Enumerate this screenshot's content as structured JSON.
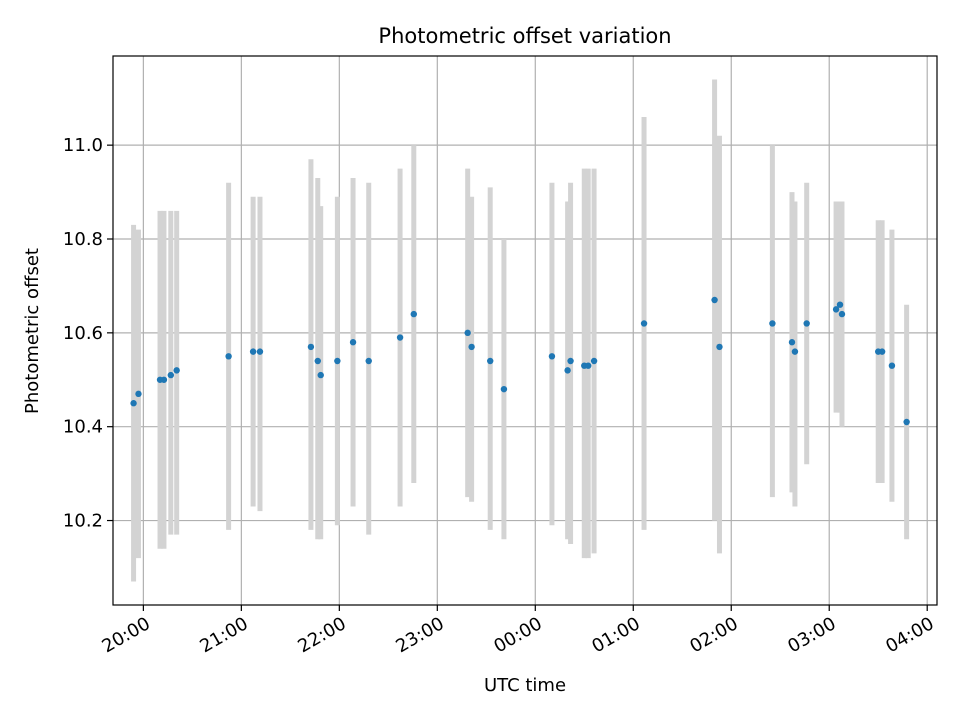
{
  "chart_data": {
    "type": "scatter",
    "title": "Photometric offset variation",
    "xlabel": "UTC time",
    "ylabel": "Photometric offset",
    "grid": true,
    "xlim": [
      -0.31,
      8.1
    ],
    "ylim": [
      10.02,
      11.19
    ],
    "x_ticks": [
      {
        "value": 0,
        "label": "20:00"
      },
      {
        "value": 1,
        "label": "21:00"
      },
      {
        "value": 2,
        "label": "22:00"
      },
      {
        "value": 3,
        "label": "23:00"
      },
      {
        "value": 4,
        "label": "00:00"
      },
      {
        "value": 5,
        "label": "01:00"
      },
      {
        "value": 6,
        "label": "02:00"
      },
      {
        "value": 7,
        "label": "03:00"
      },
      {
        "value": 8,
        "label": "04:00"
      }
    ],
    "y_ticks": [
      {
        "value": 10.2,
        "label": "10.2"
      },
      {
        "value": 10.4,
        "label": "10.4"
      },
      {
        "value": 10.6,
        "label": "10.6"
      },
      {
        "value": 10.8,
        "label": "10.8"
      },
      {
        "value": 11.0,
        "label": "11.0"
      }
    ],
    "series": [
      {
        "name": "Photometric offset",
        "marker_color": "#1f77b4",
        "errorbar_color": "#d3d3d3",
        "points": [
          {
            "x": -0.1,
            "y": 10.45,
            "ylow": 10.07,
            "yhigh": 10.83
          },
          {
            "x": -0.05,
            "y": 10.47,
            "ylow": 10.12,
            "yhigh": 10.82
          },
          {
            "x": 0.17,
            "y": 10.5,
            "ylow": 10.14,
            "yhigh": 10.86
          },
          {
            "x": 0.21,
            "y": 10.5,
            "ylow": 10.14,
            "yhigh": 10.86
          },
          {
            "x": 0.28,
            "y": 10.51,
            "ylow": 10.17,
            "yhigh": 10.86
          },
          {
            "x": 0.34,
            "y": 10.52,
            "ylow": 10.17,
            "yhigh": 10.86
          },
          {
            "x": 0.87,
            "y": 10.55,
            "ylow": 10.18,
            "yhigh": 10.92
          },
          {
            "x": 1.12,
            "y": 10.56,
            "ylow": 10.23,
            "yhigh": 10.89
          },
          {
            "x": 1.19,
            "y": 10.56,
            "ylow": 10.22,
            "yhigh": 10.89
          },
          {
            "x": 1.71,
            "y": 10.57,
            "ylow": 10.18,
            "yhigh": 10.97
          },
          {
            "x": 1.78,
            "y": 10.54,
            "ylow": 10.16,
            "yhigh": 10.93
          },
          {
            "x": 1.81,
            "y": 10.51,
            "ylow": 10.16,
            "yhigh": 10.87
          },
          {
            "x": 1.98,
            "y": 10.54,
            "ylow": 10.19,
            "yhigh": 10.89
          },
          {
            "x": 2.14,
            "y": 10.58,
            "ylow": 10.23,
            "yhigh": 10.93
          },
          {
            "x": 2.3,
            "y": 10.54,
            "ylow": 10.17,
            "yhigh": 10.92
          },
          {
            "x": 2.62,
            "y": 10.59,
            "ylow": 10.23,
            "yhigh": 10.95
          },
          {
            "x": 2.76,
            "y": 10.64,
            "ylow": 10.28,
            "yhigh": 11.0
          },
          {
            "x": 3.31,
            "y": 10.6,
            "ylow": 10.25,
            "yhigh": 10.95
          },
          {
            "x": 3.35,
            "y": 10.57,
            "ylow": 10.24,
            "yhigh": 10.89
          },
          {
            "x": 3.54,
            "y": 10.54,
            "ylow": 10.18,
            "yhigh": 10.91
          },
          {
            "x": 3.68,
            "y": 10.48,
            "ylow": 10.16,
            "yhigh": 10.8
          },
          {
            "x": 4.17,
            "y": 10.55,
            "ylow": 10.19,
            "yhigh": 10.92
          },
          {
            "x": 4.33,
            "y": 10.52,
            "ylow": 10.16,
            "yhigh": 10.88
          },
          {
            "x": 4.36,
            "y": 10.54,
            "ylow": 10.15,
            "yhigh": 10.92
          },
          {
            "x": 4.5,
            "y": 10.53,
            "ylow": 10.12,
            "yhigh": 10.95
          },
          {
            "x": 4.54,
            "y": 10.53,
            "ylow": 10.12,
            "yhigh": 10.95
          },
          {
            "x": 4.6,
            "y": 10.54,
            "ylow": 10.13,
            "yhigh": 10.95
          },
          {
            "x": 5.11,
            "y": 10.62,
            "ylow": 10.18,
            "yhigh": 11.06
          },
          {
            "x": 5.83,
            "y": 10.67,
            "ylow": 10.2,
            "yhigh": 11.14
          },
          {
            "x": 5.88,
            "y": 10.57,
            "ylow": 10.13,
            "yhigh": 11.02
          },
          {
            "x": 6.42,
            "y": 10.62,
            "ylow": 10.25,
            "yhigh": 11.0
          },
          {
            "x": 6.62,
            "y": 10.58,
            "ylow": 10.26,
            "yhigh": 10.9
          },
          {
            "x": 6.65,
            "y": 10.56,
            "ylow": 10.23,
            "yhigh": 10.88
          },
          {
            "x": 6.77,
            "y": 10.62,
            "ylow": 10.32,
            "yhigh": 10.92
          },
          {
            "x": 7.07,
            "y": 10.65,
            "ylow": 10.43,
            "yhigh": 10.88
          },
          {
            "x": 7.11,
            "y": 10.66,
            "ylow": 10.43,
            "yhigh": 10.88
          },
          {
            "x": 7.13,
            "y": 10.64,
            "ylow": 10.4,
            "yhigh": 10.88
          },
          {
            "x": 7.5,
            "y": 10.56,
            "ylow": 10.28,
            "yhigh": 10.84
          },
          {
            "x": 7.54,
            "y": 10.56,
            "ylow": 10.28,
            "yhigh": 10.84
          },
          {
            "x": 7.64,
            "y": 10.53,
            "ylow": 10.24,
            "yhigh": 10.82
          },
          {
            "x": 7.79,
            "y": 10.41,
            "ylow": 10.16,
            "yhigh": 10.66
          }
        ]
      }
    ]
  }
}
